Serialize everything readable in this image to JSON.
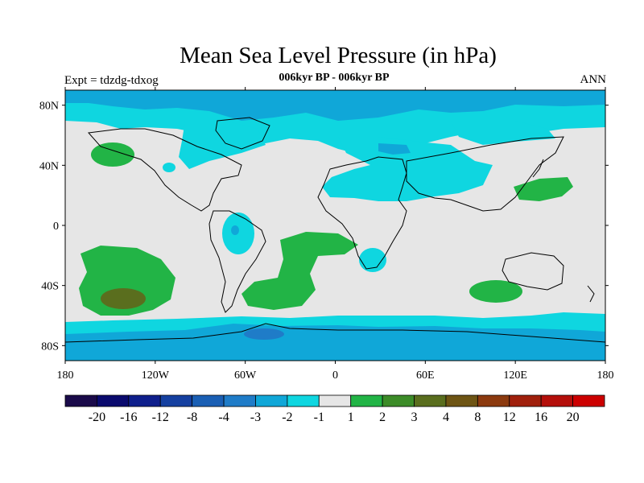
{
  "title": "Mean Sea Level Pressure (in hPa)",
  "subtitle": "006kyr BP - 006kyr BP",
  "experiment": "Expt = tdzdg-tdxog",
  "season": "ANN",
  "lat_ticks": [
    "80N",
    "40N",
    "0",
    "40S",
    "80S"
  ],
  "lon_ticks": [
    "180",
    "120W",
    "60W",
    "0",
    "60E",
    "120E",
    "180"
  ],
  "colorbar": {
    "colors": [
      "#1a0a4a",
      "#0a0a6e",
      "#0f1f8c",
      "#1540a0",
      "#1a5fb4",
      "#1f7cc8",
      "#10a7d8",
      "#0fd6e0",
      "#e6e6e6",
      "#22b446",
      "#3c8c28",
      "#5a6e1e",
      "#6e5514",
      "#8c3a0f",
      "#a0200c",
      "#b40f0a",
      "#cc0000"
    ],
    "labels": [
      "-20",
      "-16",
      "-12",
      "-8",
      "-4",
      "-3",
      "-2",
      "-1",
      "1",
      "2",
      "3",
      "4",
      "8",
      "12",
      "16",
      "20"
    ]
  },
  "palette": {
    "land_fill": "#e6e6e6",
    "neg1": "#0fd6e0",
    "neg2": "#10a7d8",
    "neg3": "#1f7cc8",
    "pos1": "#22b446",
    "pos3": "#5a6e1e"
  }
}
